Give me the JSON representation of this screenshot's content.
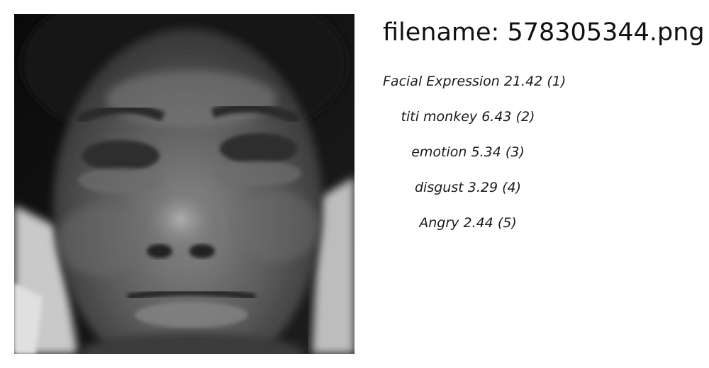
{
  "header": {
    "filename_line": "filename: 578305344.png"
  },
  "image": {
    "icon": "grayscale-face-photo",
    "tone_colors": [
      "#0b0b0b",
      "#3a3a3a",
      "#6a6a6a",
      "#bdbdbd"
    ]
  },
  "predictions": [
    {
      "label": "Facial Expression",
      "score": "21.42",
      "rank": "(1)"
    },
    {
      "label": "titi monkey",
      "score": "6.43",
      "rank": "(2)"
    },
    {
      "label": "emotion",
      "score": "5.34",
      "rank": "(3)"
    },
    {
      "label": "disgust",
      "score": "3.29",
      "rank": "(4)"
    },
    {
      "label": "Angry",
      "score": "2.44",
      "rank": "(5)"
    }
  ]
}
